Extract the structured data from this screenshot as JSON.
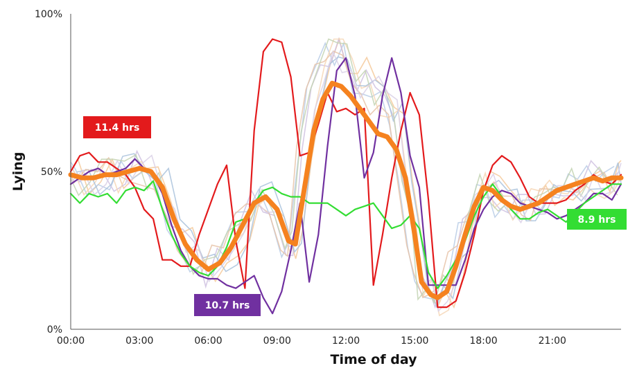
{
  "chart_data": {
    "type": "line",
    "xlabel": "Time of day",
    "ylabel": "Lying",
    "x_ticks": [
      "00:00",
      "03:00",
      "06:00",
      "09:00",
      "12:00",
      "15:00",
      "18:00",
      "21:00"
    ],
    "x_tick_hours": [
      0,
      3,
      6,
      9,
      12,
      15,
      18,
      21
    ],
    "y_ticks": [
      "0%",
      "50%",
      "100%"
    ],
    "y_tick_values": [
      0,
      50,
      100
    ],
    "xlim": [
      0,
      24
    ],
    "ylim": [
      0,
      100
    ],
    "grid": false,
    "background_series": {
      "colors": [
        "#f4c99a",
        "#b9cde6",
        "#cfc1e0",
        "#f6d6b5",
        "#a9c2dc",
        "#e8c3a8",
        "#c3d4b3",
        "#d9d0e6"
      ],
      "description_count": 8
    },
    "series": [
      {
        "name": "",
        "color": "#e31a1c",
        "annotation": "11.4 hrs",
        "points": [
          [
            0,
            50
          ],
          [
            0.4,
            55
          ],
          [
            0.8,
            56
          ],
          [
            1.2,
            53
          ],
          [
            1.6,
            53
          ],
          [
            2,
            51
          ],
          [
            2.4,
            49
          ],
          [
            2.8,
            45
          ],
          [
            3.2,
            38
          ],
          [
            3.6,
            35
          ],
          [
            4,
            22
          ],
          [
            4.4,
            22
          ],
          [
            4.8,
            20
          ],
          [
            5.2,
            20
          ],
          [
            5.6,
            30
          ],
          [
            6,
            38
          ],
          [
            6.4,
            46
          ],
          [
            6.8,
            52
          ],
          [
            7.2,
            28
          ],
          [
            7.6,
            13
          ],
          [
            8,
            63
          ],
          [
            8.4,
            88
          ],
          [
            8.8,
            92
          ],
          [
            9.2,
            91
          ],
          [
            9.6,
            80
          ],
          [
            10,
            55
          ],
          [
            10.4,
            56
          ],
          [
            10.8,
            65
          ],
          [
            11.2,
            75
          ],
          [
            11.6,
            69
          ],
          [
            12,
            70
          ],
          [
            12.4,
            68
          ],
          [
            12.8,
            70
          ],
          [
            13.2,
            14
          ],
          [
            13.6,
            30
          ],
          [
            14,
            48
          ],
          [
            14.4,
            63
          ],
          [
            14.8,
            75
          ],
          [
            15.2,
            68
          ],
          [
            15.6,
            41
          ],
          [
            16,
            7
          ],
          [
            16.4,
            7
          ],
          [
            16.8,
            9
          ],
          [
            17.2,
            18
          ],
          [
            17.6,
            30
          ],
          [
            18,
            44
          ],
          [
            18.4,
            52
          ],
          [
            18.8,
            55
          ],
          [
            19.2,
            53
          ],
          [
            19.6,
            48
          ],
          [
            20,
            42
          ],
          [
            20.4,
            40
          ],
          [
            20.8,
            40
          ],
          [
            21.2,
            40
          ],
          [
            21.6,
            41
          ],
          [
            22,
            44
          ],
          [
            22.4,
            46
          ],
          [
            22.8,
            49
          ],
          [
            23.2,
            47
          ],
          [
            23.6,
            46
          ],
          [
            24,
            49
          ]
        ]
      },
      {
        "name": "",
        "color": "#7030a0",
        "annotation": "10.7 hrs",
        "points": [
          [
            0,
            46
          ],
          [
            0.4,
            48
          ],
          [
            0.8,
            50
          ],
          [
            1.2,
            51
          ],
          [
            1.6,
            49
          ],
          [
            2,
            50
          ],
          [
            2.4,
            51
          ],
          [
            2.8,
            54
          ],
          [
            3.2,
            51
          ],
          [
            3.6,
            49
          ],
          [
            4,
            43
          ],
          [
            4.4,
            33
          ],
          [
            4.8,
            25
          ],
          [
            5.2,
            20
          ],
          [
            5.6,
            17
          ],
          [
            6,
            16
          ],
          [
            6.4,
            16
          ],
          [
            6.8,
            14
          ],
          [
            7.2,
            13
          ],
          [
            7.6,
            15
          ],
          [
            8,
            17
          ],
          [
            8.4,
            10
          ],
          [
            8.8,
            5
          ],
          [
            9.2,
            12
          ],
          [
            9.6,
            25
          ],
          [
            10,
            40
          ],
          [
            10.4,
            15
          ],
          [
            10.8,
            30
          ],
          [
            11.2,
            58
          ],
          [
            11.6,
            82
          ],
          [
            12,
            86
          ],
          [
            12.4,
            74
          ],
          [
            12.8,
            48
          ],
          [
            13.2,
            56
          ],
          [
            13.6,
            74
          ],
          [
            14,
            86
          ],
          [
            14.4,
            75
          ],
          [
            14.8,
            55
          ],
          [
            15.2,
            45
          ],
          [
            15.6,
            14
          ],
          [
            16,
            14
          ],
          [
            16.4,
            14
          ],
          [
            16.8,
            14
          ],
          [
            17.2,
            22
          ],
          [
            17.6,
            32
          ],
          [
            18,
            38
          ],
          [
            18.4,
            42
          ],
          [
            18.8,
            44
          ],
          [
            19.2,
            43
          ],
          [
            19.6,
            40
          ],
          [
            20,
            39
          ],
          [
            20.4,
            38
          ],
          [
            20.8,
            37
          ],
          [
            21.2,
            35
          ],
          [
            21.6,
            36
          ],
          [
            22,
            38
          ],
          [
            22.4,
            40
          ],
          [
            22.8,
            43
          ],
          [
            23.2,
            43
          ],
          [
            23.6,
            41
          ],
          [
            24,
            46
          ]
        ]
      },
      {
        "name": "",
        "color": "#33dd33",
        "annotation": "8.9 hrs",
        "points": [
          [
            0,
            43
          ],
          [
            0.4,
            40
          ],
          [
            0.8,
            43
          ],
          [
            1.2,
            42
          ],
          [
            1.6,
            43
          ],
          [
            2,
            40
          ],
          [
            2.4,
            44
          ],
          [
            2.8,
            45
          ],
          [
            3.2,
            44
          ],
          [
            3.6,
            47
          ],
          [
            4,
            38
          ],
          [
            4.4,
            30
          ],
          [
            4.8,
            24
          ],
          [
            5.2,
            20
          ],
          [
            5.6,
            18
          ],
          [
            6,
            17
          ],
          [
            6.4,
            20
          ],
          [
            6.8,
            26
          ],
          [
            7.2,
            34
          ],
          [
            7.6,
            35
          ],
          [
            8,
            40
          ],
          [
            8.4,
            44
          ],
          [
            8.8,
            45
          ],
          [
            9.2,
            43
          ],
          [
            9.6,
            42
          ],
          [
            10,
            42
          ],
          [
            10.4,
            40
          ],
          [
            10.8,
            40
          ],
          [
            11.2,
            40
          ],
          [
            11.6,
            38
          ],
          [
            12,
            36
          ],
          [
            12.4,
            38
          ],
          [
            12.8,
            39
          ],
          [
            13.2,
            40
          ],
          [
            13.6,
            36
          ],
          [
            14,
            32
          ],
          [
            14.4,
            33
          ],
          [
            14.8,
            36
          ],
          [
            15.2,
            32
          ],
          [
            15.6,
            18
          ],
          [
            16,
            13
          ],
          [
            16.4,
            17
          ],
          [
            16.8,
            22
          ],
          [
            17.2,
            28
          ],
          [
            17.6,
            36
          ],
          [
            18,
            42
          ],
          [
            18.4,
            46
          ],
          [
            18.8,
            42
          ],
          [
            19.2,
            38
          ],
          [
            19.6,
            35
          ],
          [
            20,
            35
          ],
          [
            20.4,
            37
          ],
          [
            20.8,
            38
          ],
          [
            21.2,
            36
          ],
          [
            21.6,
            34
          ],
          [
            22,
            37
          ],
          [
            22.4,
            40
          ],
          [
            22.8,
            42
          ],
          [
            23.2,
            44
          ],
          [
            23.6,
            46
          ],
          [
            24,
            46
          ]
        ]
      },
      {
        "name": "",
        "color": "#f5821f",
        "points": [
          [
            0,
            49
          ],
          [
            0.5,
            48
          ],
          [
            1,
            48
          ],
          [
            1.5,
            49
          ],
          [
            2,
            49
          ],
          [
            2.5,
            50
          ],
          [
            3,
            51
          ],
          [
            3.5,
            50
          ],
          [
            4,
            45
          ],
          [
            4.5,
            35
          ],
          [
            5,
            27
          ],
          [
            5.5,
            22
          ],
          [
            6,
            19
          ],
          [
            6.5,
            21
          ],
          [
            7,
            26
          ],
          [
            7.5,
            33
          ],
          [
            8,
            40
          ],
          [
            8.5,
            42
          ],
          [
            9,
            38
          ],
          [
            9.5,
            28
          ],
          [
            9.8,
            27
          ],
          [
            10.2,
            45
          ],
          [
            10.6,
            63
          ],
          [
            11,
            73
          ],
          [
            11.4,
            78
          ],
          [
            11.8,
            77
          ],
          [
            12.2,
            74
          ],
          [
            12.6,
            70
          ],
          [
            13,
            66
          ],
          [
            13.4,
            62
          ],
          [
            13.8,
            61
          ],
          [
            14.2,
            57
          ],
          [
            14.6,
            48
          ],
          [
            15,
            30
          ],
          [
            15.3,
            15
          ],
          [
            15.7,
            11
          ],
          [
            16,
            10
          ],
          [
            16.4,
            12
          ],
          [
            16.8,
            20
          ],
          [
            17.2,
            30
          ],
          [
            17.6,
            39
          ],
          [
            18,
            45
          ],
          [
            18.4,
            44
          ],
          [
            18.8,
            41
          ],
          [
            19.2,
            39
          ],
          [
            19.6,
            38
          ],
          [
            20,
            39
          ],
          [
            20.4,
            40
          ],
          [
            20.8,
            42
          ],
          [
            21.2,
            44
          ],
          [
            21.6,
            45
          ],
          [
            22,
            46
          ],
          [
            22.4,
            47
          ],
          [
            22.8,
            48
          ],
          [
            23.2,
            47
          ],
          [
            23.6,
            48
          ],
          [
            24,
            48
          ]
        ]
      }
    ]
  }
}
